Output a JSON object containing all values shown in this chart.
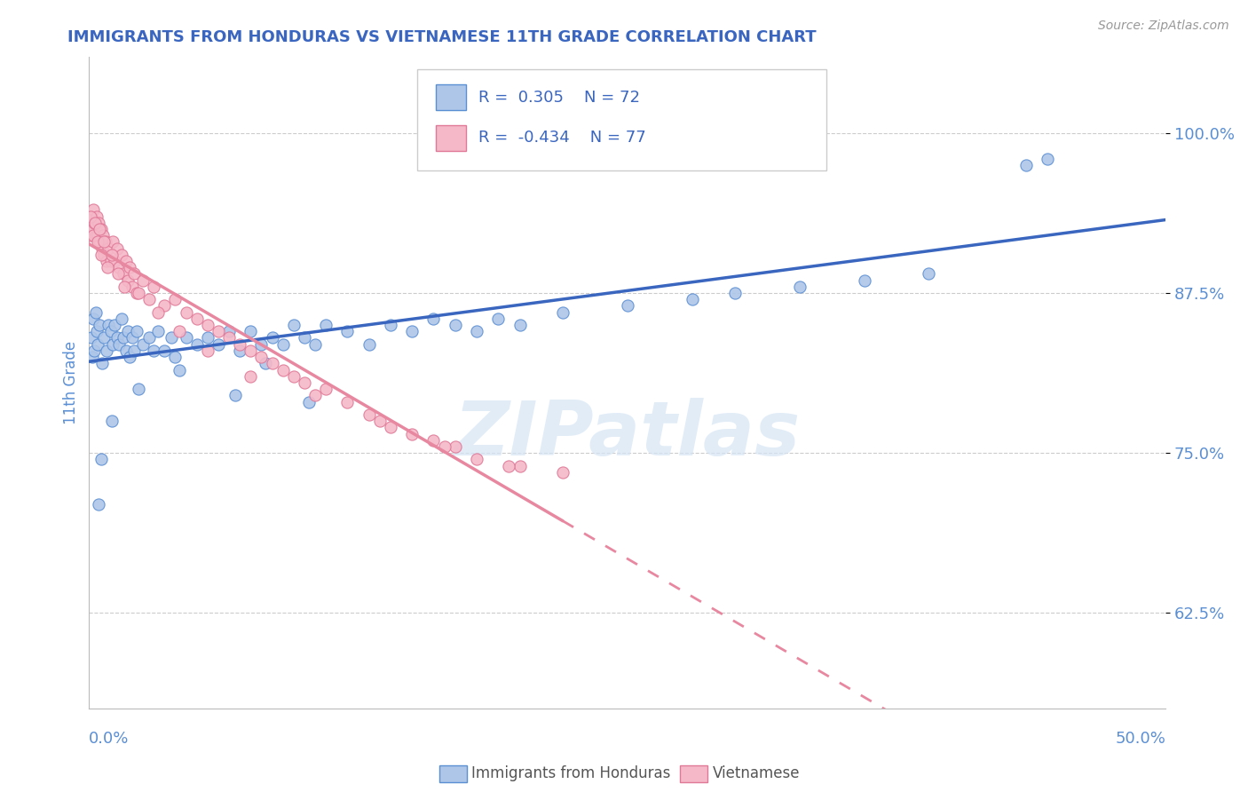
{
  "title": "IMMIGRANTS FROM HONDURAS VS VIETNAMESE 11TH GRADE CORRELATION CHART",
  "source": "Source: ZipAtlas.com",
  "ylabel": "11th Grade",
  "xlim": [
    0.0,
    50.0
  ],
  "ylim": [
    55.0,
    106.0
  ],
  "yticks": [
    62.5,
    75.0,
    87.5,
    100.0
  ],
  "ytick_labels": [
    "62.5%",
    "75.0%",
    "87.5%",
    "100.0%"
  ],
  "legend_blue_r": "0.305",
  "legend_blue_n": "72",
  "legend_pink_r": "-0.434",
  "legend_pink_n": "77",
  "legend_label_blue": "Immigrants from Honduras",
  "legend_label_pink": "Vietnamese",
  "blue_fill": "#aec6e8",
  "pink_fill": "#f5b8c8",
  "blue_edge": "#5b8fd4",
  "pink_edge": "#e07898",
  "blue_line": "#3a66c0",
  "pink_line": "#e888a0",
  "title_color": "#3a66c0",
  "axis_color": "#5b8fd4",
  "watermark_color": "#d5e5f5",
  "watermark_text": "ZIPatlas",
  "blue_scatter_x": [
    0.1,
    0.15,
    0.2,
    0.25,
    0.3,
    0.35,
    0.4,
    0.5,
    0.6,
    0.7,
    0.8,
    0.9,
    1.0,
    1.1,
    1.2,
    1.3,
    1.4,
    1.5,
    1.6,
    1.7,
    1.8,
    1.9,
    2.0,
    2.1,
    2.2,
    2.5,
    2.8,
    3.0,
    3.2,
    3.5,
    3.8,
    4.0,
    4.5,
    5.0,
    5.5,
    6.0,
    6.5,
    7.0,
    7.5,
    8.0,
    8.5,
    9.0,
    9.5,
    10.0,
    10.5,
    11.0,
    12.0,
    13.0,
    14.0,
    15.0,
    16.0,
    17.0,
    18.0,
    19.0,
    20.0,
    22.0,
    25.0,
    28.0,
    30.0,
    33.0,
    36.0,
    39.0,
    43.5,
    44.5,
    0.45,
    0.55,
    1.05,
    2.3,
    4.2,
    6.8,
    8.2,
    10.2
  ],
  "blue_scatter_y": [
    84.0,
    82.5,
    85.5,
    83.0,
    86.0,
    84.5,
    83.5,
    85.0,
    82.0,
    84.0,
    83.0,
    85.0,
    84.5,
    83.5,
    85.0,
    84.0,
    83.5,
    85.5,
    84.0,
    83.0,
    84.5,
    82.5,
    84.0,
    83.0,
    84.5,
    83.5,
    84.0,
    83.0,
    84.5,
    83.0,
    84.0,
    82.5,
    84.0,
    83.5,
    84.0,
    83.5,
    84.5,
    83.0,
    84.5,
    83.5,
    84.0,
    83.5,
    85.0,
    84.0,
    83.5,
    85.0,
    84.5,
    83.5,
    85.0,
    84.5,
    85.5,
    85.0,
    84.5,
    85.5,
    85.0,
    86.0,
    86.5,
    87.0,
    87.5,
    88.0,
    88.5,
    89.0,
    97.5,
    98.0,
    71.0,
    74.5,
    77.5,
    80.0,
    81.5,
    79.5,
    82.0,
    79.0
  ],
  "pink_scatter_x": [
    0.05,
    0.1,
    0.15,
    0.2,
    0.25,
    0.3,
    0.35,
    0.4,
    0.45,
    0.5,
    0.55,
    0.6,
    0.65,
    0.7,
    0.75,
    0.8,
    0.9,
    1.0,
    1.1,
    1.2,
    1.3,
    1.4,
    1.5,
    1.6,
    1.7,
    1.8,
    1.9,
    2.0,
    2.1,
    2.2,
    2.5,
    2.8,
    3.0,
    3.5,
    4.0,
    4.5,
    5.0,
    5.5,
    6.0,
    6.5,
    7.0,
    7.5,
    8.0,
    8.5,
    9.0,
    9.5,
    10.0,
    11.0,
    12.0,
    13.0,
    14.0,
    15.0,
    16.0,
    17.0,
    18.0,
    20.0,
    22.0,
    0.08,
    0.18,
    0.28,
    0.38,
    0.48,
    0.58,
    0.68,
    0.85,
    1.05,
    1.35,
    1.65,
    2.3,
    3.2,
    4.2,
    5.5,
    7.5,
    10.5,
    13.5,
    16.5,
    19.5
  ],
  "pink_scatter_y": [
    92.0,
    93.5,
    92.5,
    94.0,
    93.0,
    92.0,
    93.5,
    92.0,
    93.0,
    91.5,
    92.5,
    91.0,
    92.0,
    90.5,
    91.5,
    90.0,
    91.0,
    90.0,
    91.5,
    90.0,
    91.0,
    89.5,
    90.5,
    89.0,
    90.0,
    88.5,
    89.5,
    88.0,
    89.0,
    87.5,
    88.5,
    87.0,
    88.0,
    86.5,
    87.0,
    86.0,
    85.5,
    85.0,
    84.5,
    84.0,
    83.5,
    83.0,
    82.5,
    82.0,
    81.5,
    81.0,
    80.5,
    80.0,
    79.0,
    78.0,
    77.0,
    76.5,
    76.0,
    75.5,
    74.5,
    74.0,
    73.5,
    93.5,
    92.0,
    93.0,
    91.5,
    92.5,
    90.5,
    91.5,
    89.5,
    90.5,
    89.0,
    88.0,
    87.5,
    86.0,
    84.5,
    83.0,
    81.0,
    79.5,
    77.5,
    75.5,
    74.0
  ]
}
